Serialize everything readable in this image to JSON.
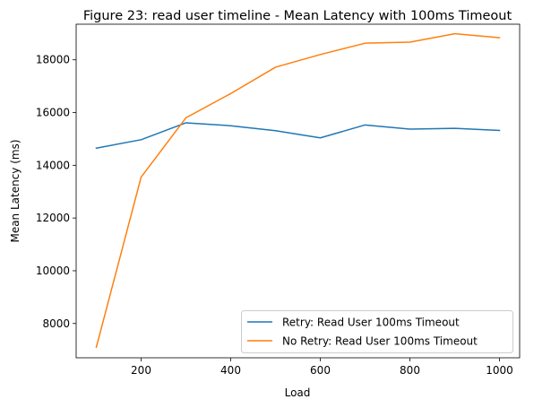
{
  "chart_data": {
    "type": "line",
    "title": "Figure 23: read user timeline - Mean Latency with 100ms Timeout",
    "xlabel": "Load",
    "ylabel": "Mean Latency (ms)",
    "xlim": [
      55,
      1045
    ],
    "ylim": [
      6700,
      19350
    ],
    "xticks": [
      200,
      400,
      600,
      800,
      1000
    ],
    "yticks": [
      8000,
      10000,
      12000,
      14000,
      16000,
      18000
    ],
    "legend_position": "lower-right",
    "x": [
      100,
      200,
      300,
      400,
      500,
      600,
      700,
      800,
      900,
      1000
    ],
    "series": [
      {
        "name": "Retry: Read User 100ms Timeout",
        "color": "#1f77b4",
        "values": [
          14650,
          14970,
          15610,
          15500,
          15310,
          15040,
          15530,
          15370,
          15400,
          15320
        ]
      },
      {
        "name": "No Retry: Read User 100ms Timeout",
        "color": "#ff7f0e",
        "values": [
          7100,
          13550,
          15800,
          16720,
          17720,
          18200,
          18630,
          18670,
          18990,
          18840
        ]
      }
    ]
  }
}
